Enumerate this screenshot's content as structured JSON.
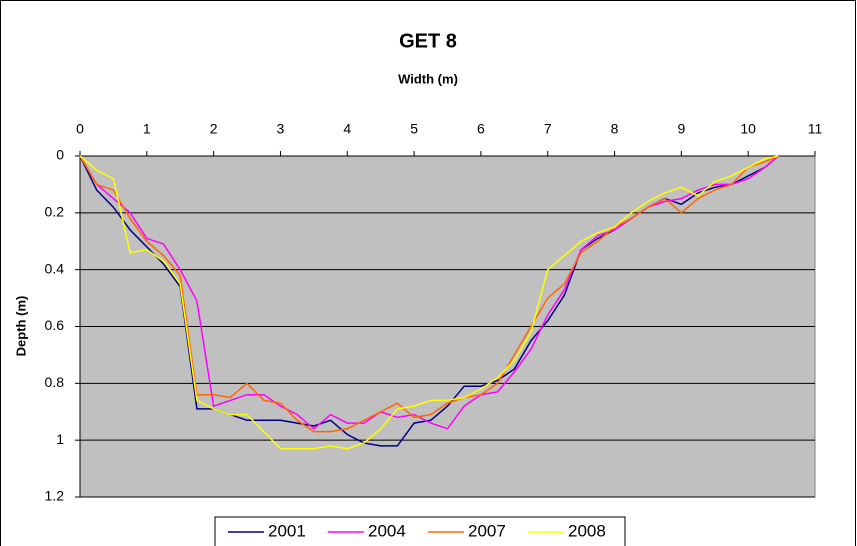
{
  "chart_data": {
    "type": "line",
    "title": "GET 8",
    "xlabel": "Width (m)",
    "ylabel": "Depth (m)",
    "x": [
      0,
      0.25,
      0.5,
      0.75,
      1,
      1.25,
      1.5,
      1.75,
      2,
      2.25,
      2.5,
      2.75,
      3,
      3.25,
      3.5,
      3.75,
      4,
      4.25,
      4.5,
      4.75,
      5,
      5.25,
      5.5,
      5.75,
      6,
      6.25,
      6.5,
      6.75,
      7,
      7.25,
      7.5,
      7.75,
      8,
      8.25,
      8.5,
      8.75,
      9,
      9.25,
      9.5,
      9.75,
      10,
      10.25,
      10.45
    ],
    "series": [
      {
        "name": "2001",
        "color": "#000080",
        "values": [
          0,
          0.12,
          0.18,
          0.26,
          0.32,
          0.38,
          0.46,
          0.89,
          0.89,
          0.91,
          0.93,
          0.93,
          0.93,
          0.94,
          0.95,
          0.93,
          0.98,
          1.01,
          1.02,
          1.02,
          0.94,
          0.93,
          0.88,
          0.81,
          0.81,
          0.79,
          0.75,
          0.65,
          0.58,
          0.49,
          0.33,
          0.29,
          0.26,
          0.22,
          0.18,
          0.15,
          0.17,
          0.13,
          0.11,
          0.1,
          0.07,
          0.04,
          0
        ]
      },
      {
        "name": "2004",
        "color": "#ff00ff",
        "values": [
          0,
          0.1,
          0.15,
          0.2,
          0.29,
          0.31,
          0.4,
          0.51,
          0.88,
          0.86,
          0.84,
          0.84,
          0.88,
          0.91,
          0.96,
          0.91,
          0.94,
          0.94,
          0.9,
          0.92,
          0.91,
          0.94,
          0.96,
          0.88,
          0.84,
          0.83,
          0.76,
          0.68,
          0.56,
          0.47,
          0.33,
          0.28,
          0.26,
          0.22,
          0.18,
          0.16,
          0.15,
          0.12,
          0.1,
          0.1,
          0.08,
          0.04,
          0
        ]
      },
      {
        "name": "2007",
        "color": "#ff6600",
        "values": [
          0,
          0.1,
          0.12,
          0.22,
          0.3,
          0.35,
          0.42,
          0.84,
          0.84,
          0.85,
          0.8,
          0.86,
          0.87,
          0.93,
          0.97,
          0.97,
          0.96,
          0.93,
          0.9,
          0.87,
          0.92,
          0.91,
          0.87,
          0.85,
          0.84,
          0.8,
          0.7,
          0.6,
          0.5,
          0.45,
          0.34,
          0.3,
          0.25,
          0.22,
          0.18,
          0.15,
          0.2,
          0.15,
          0.12,
          0.1,
          0.04,
          0.02,
          0
        ]
      },
      {
        "name": "2008",
        "color": "#ffff00",
        "values": [
          0,
          0.05,
          0.08,
          0.34,
          0.33,
          0.37,
          0.45,
          0.86,
          0.89,
          0.91,
          0.91,
          0.97,
          1.03,
          1.03,
          1.03,
          1.02,
          1.03,
          1.01,
          0.96,
          0.89,
          0.88,
          0.86,
          0.86,
          0.85,
          0.82,
          0.78,
          0.72,
          0.62,
          0.4,
          0.35,
          0.3,
          0.27,
          0.25,
          0.2,
          0.16,
          0.13,
          0.11,
          0.14,
          0.09,
          0.07,
          0.04,
          0.01,
          0
        ]
      }
    ],
    "xlim": [
      0,
      11
    ],
    "xticks": [
      0,
      1,
      2,
      3,
      4,
      5,
      6,
      7,
      8,
      9,
      10,
      11
    ],
    "ylim": [
      0,
      1.2
    ],
    "yticks": [
      0,
      0.2,
      0.4,
      0.6,
      0.8,
      1,
      1.2
    ],
    "y_reversed": true,
    "x_axis_position": "top",
    "grid": true,
    "legend": "bottom",
    "plot_background": "#c0c0c0"
  }
}
